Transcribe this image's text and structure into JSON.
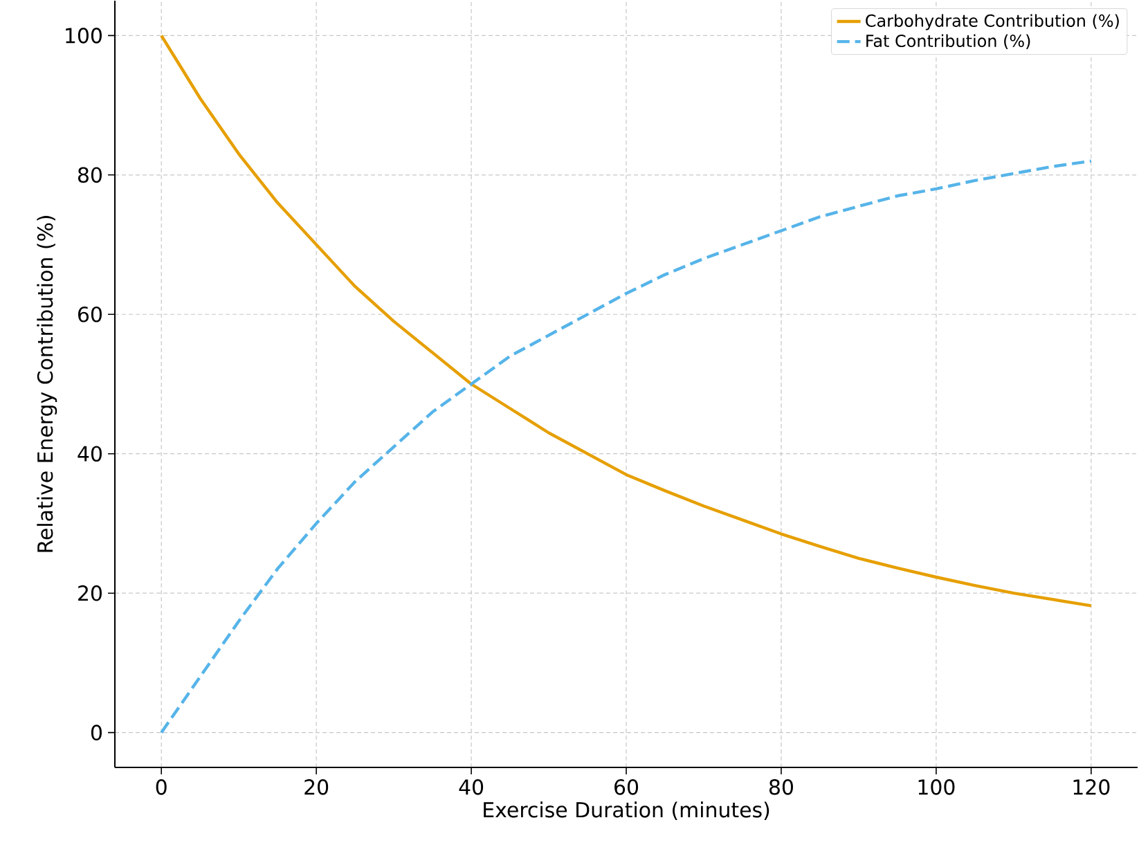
{
  "chart_data": {
    "type": "line",
    "xlabel": "Exercise Duration (minutes)",
    "ylabel": "Relative Energy Contribution (%)",
    "x": [
      0,
      5,
      10,
      15,
      20,
      25,
      30,
      35,
      40,
      45,
      50,
      55,
      60,
      65,
      70,
      75,
      80,
      85,
      90,
      95,
      100,
      105,
      110,
      115,
      120
    ],
    "series": [
      {
        "name": "Carbohydrate Contribution (%)",
        "color": "#e69f00",
        "line_style": "solid",
        "values": [
          100,
          91,
          83,
          76,
          70,
          64,
          59,
          54.5,
          50,
          46.5,
          43,
          40,
          37,
          34.7,
          32.5,
          30.5,
          28.5,
          26.7,
          25,
          23.6,
          22.3,
          21.1,
          20,
          19.1,
          18.2
        ]
      },
      {
        "name": "Fat Contribution (%)",
        "color": "#56b4e9",
        "line_style": "dashed",
        "values": [
          0,
          8,
          16,
          23.5,
          30,
          36,
          41,
          46,
          50,
          54,
          57,
          60,
          63,
          65.7,
          68,
          70,
          72,
          74,
          75.5,
          77,
          78,
          79.2,
          80.2,
          81.2,
          82
        ]
      }
    ],
    "xlim": [
      -6,
      126
    ],
    "ylim": [
      -5,
      105
    ],
    "xticks": [
      0,
      20,
      40,
      60,
      80,
      100,
      120
    ],
    "yticks": [
      0,
      20,
      40,
      60,
      80,
      100
    ],
    "grid": true,
    "legend": "top right",
    "marker": "none"
  }
}
